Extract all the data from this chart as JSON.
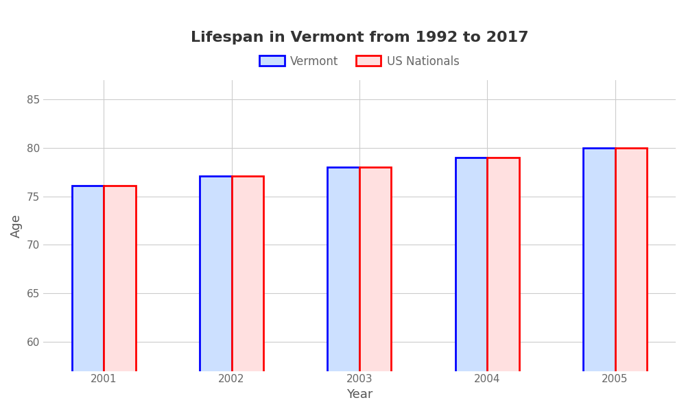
{
  "title": "Lifespan in Vermont from 1992 to 2017",
  "xlabel": "Year",
  "ylabel": "Age",
  "years": [
    2001,
    2002,
    2003,
    2004,
    2005
  ],
  "vermont": [
    76.1,
    77.1,
    78.0,
    79.0,
    80.0
  ],
  "us_nationals": [
    76.1,
    77.1,
    78.0,
    79.0,
    80.0
  ],
  "vermont_color": "#0000ff",
  "vermont_fill": "#cce0ff",
  "us_color": "#ff0000",
  "us_fill": "#ffe0e0",
  "ylim": [
    57,
    87
  ],
  "yticks": [
    60,
    65,
    70,
    75,
    80,
    85
  ],
  "bar_width": 0.25,
  "background_color": "#ffffff",
  "plot_bg_color": "#ffffff",
  "grid_color": "#cccccc",
  "title_fontsize": 16,
  "label_fontsize": 13,
  "tick_fontsize": 11,
  "legend_fontsize": 12,
  "tick_color": "#666666",
  "label_color": "#555555",
  "title_color": "#333333"
}
